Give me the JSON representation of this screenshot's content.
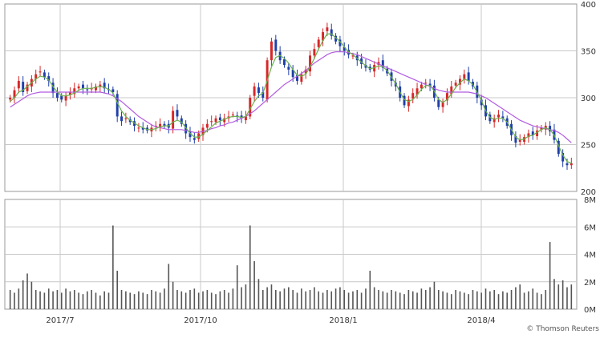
{
  "chart_data": [
    {
      "type": "candlestick",
      "x_ticks": [
        "2017/7",
        "2017/10",
        "2018/1",
        "2018/4"
      ],
      "y_ticks": [
        "200",
        "250",
        "300",
        "350",
        "400"
      ],
      "ylim": [
        200,
        400
      ],
      "grid": true,
      "colors": {
        "up": "#d62728",
        "down": "#1f3faa",
        "ma_short": "#6ab04c",
        "ma_long": "#b25ce0"
      },
      "close": [
        300,
        308,
        318,
        306,
        314,
        320,
        325,
        328,
        322,
        318,
        305,
        300,
        298,
        302,
        306,
        310,
        312,
        310,
        308,
        310,
        312,
        314,
        310,
        308,
        306,
        280,
        275,
        278,
        274,
        270,
        268,
        266,
        265,
        268,
        270,
        272,
        270,
        268,
        286,
        280,
        272,
        262,
        258,
        255,
        262,
        268,
        272,
        275,
        278,
        276,
        278,
        280,
        282,
        280,
        278,
        280,
        300,
        312,
        305,
        300,
        340,
        360,
        350,
        340,
        335,
        330,
        322,
        318,
        325,
        330,
        345,
        352,
        362,
        370,
        375,
        366,
        360,
        355,
        350,
        346,
        345,
        340,
        336,
        332,
        330,
        335,
        338,
        332,
        326,
        318,
        312,
        300,
        292,
        298,
        305,
        310,
        314,
        316,
        312,
        300,
        290,
        295,
        305,
        312,
        316,
        320,
        325,
        318,
        312,
        300,
        292,
        280,
        275,
        278,
        282,
        278,
        270,
        260,
        252,
        255,
        258,
        262,
        260,
        265,
        268,
        270,
        264,
        255,
        240,
        232,
        228,
        230
      ],
      "ma_short": [
        296,
        300,
        306,
        308,
        312,
        316,
        320,
        323,
        322,
        319,
        312,
        306,
        302,
        302,
        303,
        305,
        308,
        310,
        310,
        310,
        311,
        312,
        311,
        309,
        305,
        295,
        286,
        280,
        276,
        273,
        270,
        268,
        266,
        266,
        267,
        269,
        270,
        270,
        274,
        276,
        274,
        268,
        262,
        258,
        258,
        261,
        265,
        269,
        273,
        275,
        277,
        279,
        280,
        280,
        279,
        280,
        288,
        296,
        302,
        305,
        318,
        333,
        343,
        345,
        342,
        337,
        330,
        324,
        323,
        325,
        333,
        342,
        352,
        361,
        368,
        368,
        364,
        360,
        354,
        349,
        346,
        342,
        338,
        334,
        331,
        332,
        334,
        333,
        329,
        322,
        315,
        306,
        298,
        296,
        298,
        303,
        309,
        313,
        313,
        307,
        298,
        295,
        298,
        304,
        311,
        316,
        320,
        318,
        314,
        306,
        297,
        286,
        279,
        277,
        278,
        278,
        274,
        266,
        258,
        255,
        256,
        259,
        260,
        263,
        266,
        268,
        266,
        260,
        249,
        239,
        232,
        230
      ],
      "ma_long": [
        290,
        293,
        296,
        299,
        302,
        304,
        305,
        306,
        306,
        306,
        306,
        306,
        306,
        306,
        306,
        306,
        306,
        306,
        306,
        306,
        306,
        306,
        305,
        304,
        302,
        299,
        296,
        292,
        288,
        284,
        280,
        277,
        274,
        271,
        269,
        268,
        267,
        266,
        266,
        266,
        266,
        265,
        264,
        263,
        263,
        264,
        265,
        267,
        268,
        270,
        271,
        273,
        274,
        276,
        278,
        280,
        283,
        286,
        290,
        294,
        298,
        302,
        306,
        310,
        314,
        317,
        320,
        323,
        326,
        329,
        333,
        337,
        340,
        343,
        346,
        348,
        349,
        349,
        349,
        348,
        347,
        346,
        344,
        342,
        340,
        338,
        336,
        334,
        332,
        330,
        328,
        326,
        324,
        322,
        320,
        318,
        316,
        314,
        312,
        310,
        308,
        307,
        306,
        306,
        306,
        306,
        306,
        306,
        305,
        304,
        302,
        300,
        297,
        294,
        291,
        288,
        285,
        282,
        279,
        276,
        274,
        272,
        270,
        269,
        268,
        267,
        266,
        265,
        263,
        260,
        256,
        252
      ]
    },
    {
      "type": "bar",
      "title": "",
      "y_ticks": [
        "0M",
        "2M",
        "4M",
        "6M",
        "8M"
      ],
      "ylim": [
        0,
        8
      ],
      "grid": true,
      "color": "#555555",
      "values": [
        1.4,
        1.2,
        1.5,
        2.1,
        2.6,
        2.0,
        1.4,
        1.3,
        1.2,
        1.5,
        1.3,
        1.4,
        1.2,
        1.5,
        1.3,
        1.4,
        1.2,
        1.1,
        1.3,
        1.4,
        1.2,
        1.0,
        1.3,
        1.2,
        6.1,
        2.8,
        1.4,
        1.3,
        1.2,
        1.1,
        1.3,
        1.2,
        1.1,
        1.4,
        1.3,
        1.2,
        1.5,
        3.3,
        2.0,
        1.4,
        1.3,
        1.2,
        1.4,
        1.5,
        1.2,
        1.3,
        1.4,
        1.2,
        1.1,
        1.3,
        1.4,
        1.2,
        1.5,
        3.2,
        1.6,
        1.8,
        6.1,
        3.5,
        2.2,
        1.4,
        1.6,
        1.8,
        1.4,
        1.3,
        1.5,
        1.6,
        1.4,
        1.2,
        1.5,
        1.3,
        1.4,
        1.6,
        1.3,
        1.2,
        1.4,
        1.3,
        1.5,
        1.6,
        1.4,
        1.2,
        1.3,
        1.4,
        1.2,
        1.5,
        2.8,
        1.6,
        1.4,
        1.3,
        1.2,
        1.4,
        1.3,
        1.2,
        1.1,
        1.4,
        1.3,
        1.2,
        1.5,
        1.4,
        1.6,
        2.0,
        1.4,
        1.3,
        1.2,
        1.1,
        1.4,
        1.3,
        1.2,
        1.1,
        1.4,
        1.3,
        1.2,
        1.5,
        1.3,
        1.4,
        1.1,
        1.3,
        1.2,
        1.4,
        1.6,
        1.8,
        1.2,
        1.3,
        1.5,
        1.2,
        1.1,
        1.4,
        4.9,
        2.2,
        1.8,
        2.1,
        1.6,
        1.8
      ]
    }
  ],
  "credit": "© Thomson Reuters"
}
